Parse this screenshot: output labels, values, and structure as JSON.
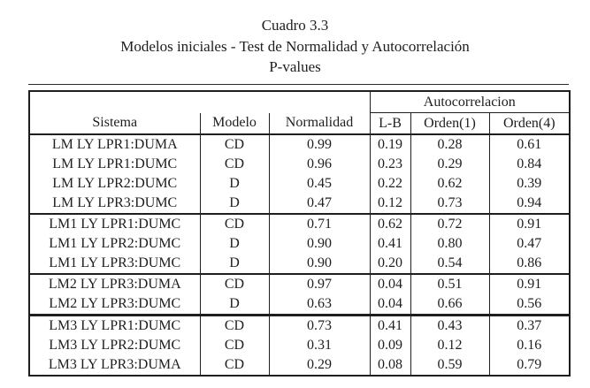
{
  "title": {
    "line1": "Cuadro 3.3",
    "line2": "Modelos iniciales - Test de Normalidad y Autocorrelación",
    "line3": "P-values"
  },
  "table": {
    "group_header": "Autocorrelacion",
    "columns": [
      "Sistema",
      "Modelo",
      "Normalidad",
      "L-B",
      "Orden(1)",
      "Orden(4)"
    ],
    "groups": [
      {
        "rows": [
          [
            "LM LY LPR1:DUMA",
            "CD",
            "0.99",
            "0.19",
            "0.28",
            "0.61"
          ],
          [
            "LM LY LPR1:DUMC",
            "CD",
            "0.96",
            "0.23",
            "0.29",
            "0.84"
          ],
          [
            "LM LY LPR2:DUMC",
            "D",
            "0.45",
            "0.22",
            "0.62",
            "0.39"
          ],
          [
            "LM LY LPR3:DUMC",
            "D",
            "0.47",
            "0.12",
            "0.73",
            "0.94"
          ]
        ]
      },
      {
        "rows": [
          [
            "LM1 LY LPR1:DUMC",
            "CD",
            "0.71",
            "0.62",
            "0.72",
            "0.91"
          ],
          [
            "LM1 LY LPR2:DUMC",
            "D",
            "0.90",
            "0.41",
            "0.80",
            "0.47"
          ],
          [
            "LM1 LY LPR3:DUMC",
            "D",
            "0.90",
            "0.20",
            "0.54",
            "0.86"
          ]
        ]
      },
      {
        "rows": [
          [
            "LM2 LY LPR3:DUMA",
            "CD",
            "0.97",
            "0.04",
            "0.51",
            "0.91"
          ],
          [
            "LM2 LY LPR3:DUMC",
            "D",
            "0.63",
            "0.04",
            "0.66",
            "0.56"
          ]
        ]
      },
      {
        "rows": [
          [
            "LM3 LY LPR1:DUMC",
            "CD",
            "0.73",
            "0.41",
            "0.43",
            "0.37"
          ],
          [
            "LM3 LY LPR2:DUMC",
            "CD",
            "0.31",
            "0.09",
            "0.12",
            "0.16"
          ],
          [
            "LM3 LY LPR3:DUMA",
            "CD",
            "0.29",
            "0.08",
            "0.59",
            "0.79"
          ]
        ]
      }
    ]
  },
  "colors": {
    "text": "#1e1e1e",
    "border": "#1e1e1e",
    "background": "#ffffff"
  }
}
